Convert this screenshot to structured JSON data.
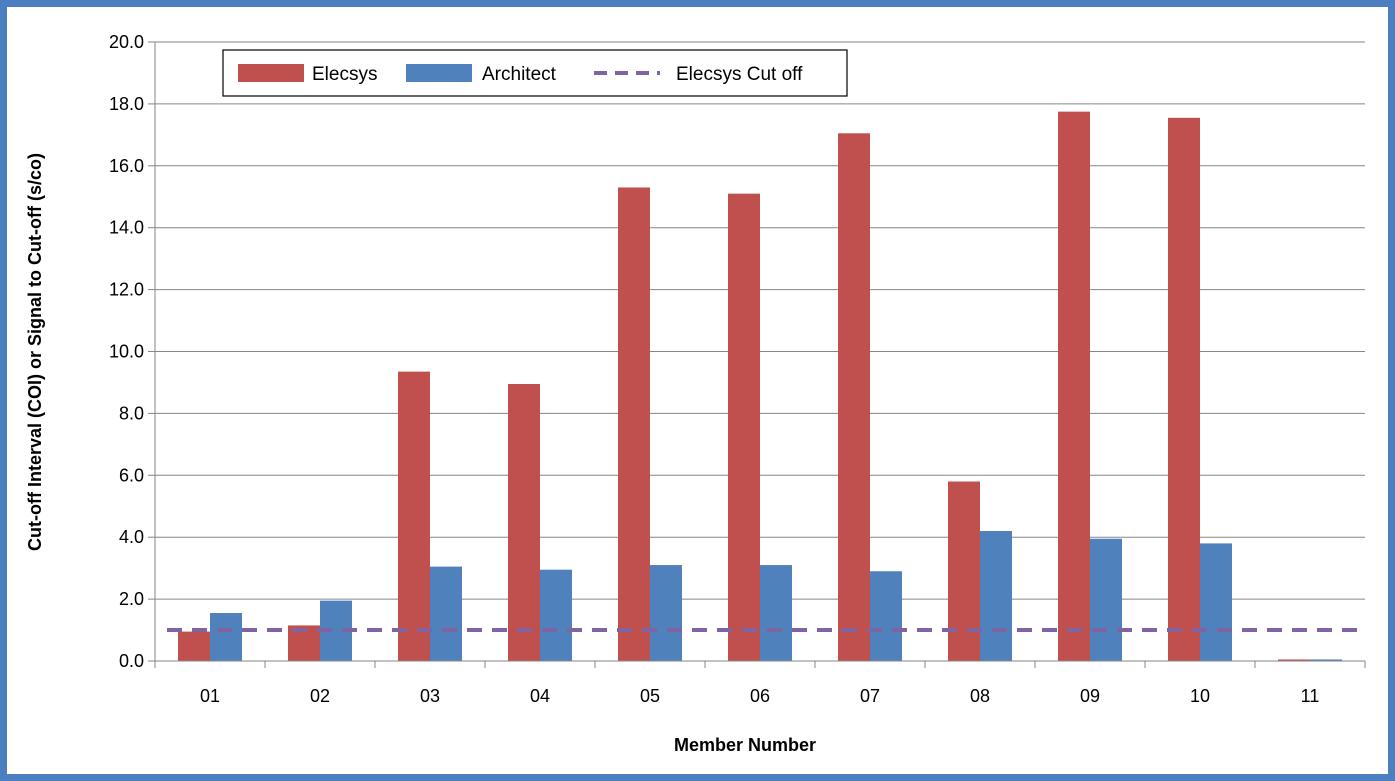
{
  "chart_data": {
    "type": "bar",
    "title": "",
    "xlabel": "Member Number",
    "ylabel": "Cut-off Interval (COI) or Signal to Cut-off  (s/co)",
    "categories": [
      "01",
      "02",
      "03",
      "04",
      "05",
      "06",
      "07",
      "08",
      "09",
      "10",
      "11"
    ],
    "series": [
      {
        "name": "Elecsys",
        "color": "#c0504d",
        "values": [
          0.95,
          1.15,
          9.35,
          8.95,
          15.3,
          15.1,
          17.05,
          5.8,
          17.75,
          17.55,
          0.05
        ]
      },
      {
        "name": "Architect",
        "color": "#4f81bd",
        "values": [
          1.55,
          1.95,
          3.05,
          2.95,
          3.1,
          3.1,
          2.9,
          4.2,
          3.95,
          3.8,
          0.05
        ]
      }
    ],
    "reference_line": {
      "name": "Elecsys Cut off",
      "value": 1.0,
      "color": "#8064a2",
      "style": "dashed"
    },
    "ylim": [
      0,
      20
    ],
    "yticks": [
      "0.0",
      "2.0",
      "4.0",
      "6.0",
      "8.0",
      "10.0",
      "12.0",
      "14.0",
      "16.0",
      "18.0",
      "20.0"
    ],
    "grid": true,
    "legend_position": "top-left"
  }
}
